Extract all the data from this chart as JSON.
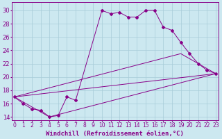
{
  "xlabel": "Windchill (Refroidissement éolien,°C)",
  "background_color": "#cce8f0",
  "grid_color": "#a8ccd8",
  "line_color": "#880088",
  "x_ticks": [
    0,
    1,
    2,
    3,
    4,
    5,
    6,
    7,
    8,
    9,
    10,
    11,
    12,
    13,
    14,
    15,
    16,
    17,
    18,
    19,
    20,
    21,
    22,
    23
  ],
  "y_ticks": [
    14,
    16,
    18,
    20,
    22,
    24,
    26,
    28,
    30
  ],
  "ylim": [
    13.5,
    31.2
  ],
  "xlim": [
    -0.3,
    23.3
  ],
  "line1_x": [
    0,
    1,
    2,
    3,
    4,
    5,
    6,
    7,
    10,
    11,
    12,
    13,
    14,
    15,
    16,
    17,
    18,
    19,
    20,
    21,
    22,
    23
  ],
  "line1_y": [
    17.0,
    16.0,
    15.2,
    15.0,
    14.0,
    14.2,
    17.0,
    16.5,
    30.0,
    29.5,
    29.7,
    29.0,
    29.0,
    30.0,
    30.0,
    27.5,
    27.0,
    25.2,
    23.5,
    22.0,
    21.0,
    20.5
  ],
  "line2_x": [
    0,
    23
  ],
  "line2_y": [
    17.0,
    20.5
  ],
  "line3_x": [
    0,
    19,
    23
  ],
  "line3_y": [
    17.0,
    23.5,
    20.5
  ],
  "line4_x": [
    0,
    4,
    23
  ],
  "line4_y": [
    17.0,
    14.0,
    20.5
  ],
  "font_size_xlabel": 6.5,
  "font_size_yticks": 6,
  "font_size_xticks": 5.5
}
